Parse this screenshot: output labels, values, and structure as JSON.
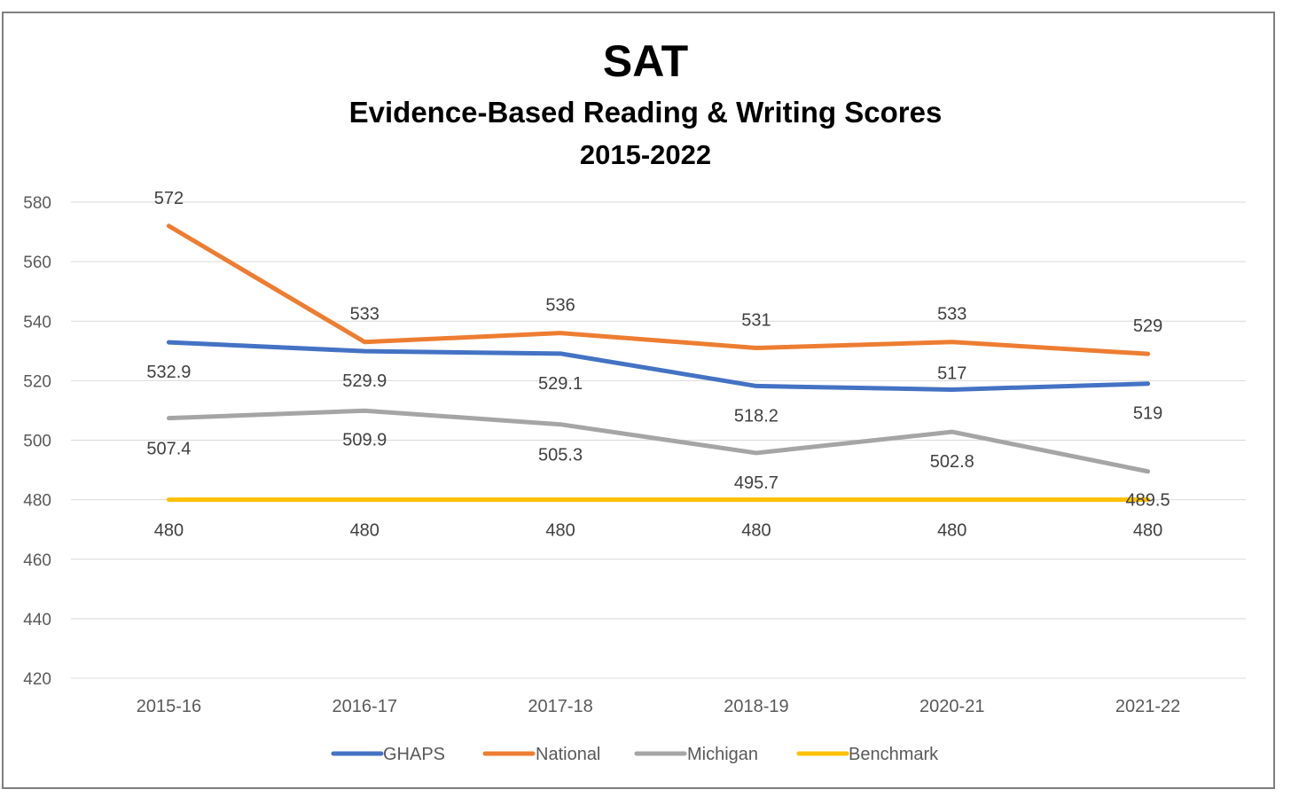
{
  "chart_data": {
    "type": "line",
    "title": "SAT",
    "subtitle": "Evidence-Based Reading & Writing Scores",
    "subtitle2": "2015-2022",
    "categories": [
      "2015-16",
      "2016-17",
      "2017-18",
      "2018-19",
      "2020-21",
      "2021-22"
    ],
    "series": [
      {
        "name": "GHAPS",
        "color": "#4472c4",
        "values": [
          532.9,
          529.9,
          529.1,
          518.2,
          517,
          519
        ],
        "labels": [
          "532.9",
          "529.9",
          "529.1",
          "518.2",
          "517",
          "519"
        ]
      },
      {
        "name": "National",
        "color": "#ed7d31",
        "values": [
          572,
          533,
          536,
          531,
          533,
          529
        ],
        "labels": [
          "572",
          "533",
          "536",
          "531",
          "533",
          "529"
        ]
      },
      {
        "name": "Michigan",
        "color": "#a5a5a5",
        "values": [
          507.4,
          509.9,
          505.3,
          495.7,
          502.8,
          489.5
        ],
        "labels": [
          "507.4",
          "509.9",
          "505.3",
          "495.7",
          "502.8",
          "489.5"
        ]
      },
      {
        "name": "Benchmark",
        "color": "#ffc000",
        "values": [
          480,
          480,
          480,
          480,
          480,
          480
        ],
        "labels": [
          "480",
          "480",
          "480",
          "480",
          "480",
          "480"
        ]
      }
    ],
    "yticks": [
      "420",
      "440",
      "460",
      "480",
      "500",
      "520",
      "540",
      "560",
      "580"
    ],
    "ylim": [
      420,
      580
    ],
    "xlabel": "",
    "ylabel": "",
    "grid": true,
    "legend_position": "bottom"
  }
}
